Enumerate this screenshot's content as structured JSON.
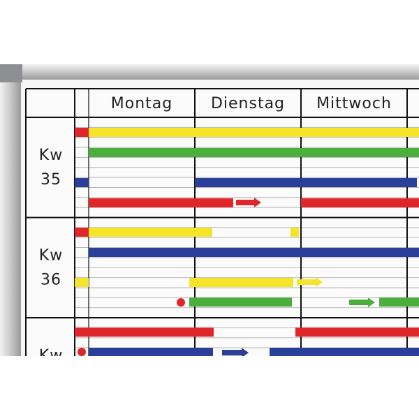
{
  "header": {
    "days": [
      "Montag",
      "Dienstag",
      "Mittwoch"
    ]
  },
  "weeks": [
    {
      "lines": [
        "Kw",
        "35"
      ]
    },
    {
      "lines": [
        "Kw",
        "36"
      ]
    },
    {
      "lines": [
        "Kw"
      ]
    }
  ]
}
